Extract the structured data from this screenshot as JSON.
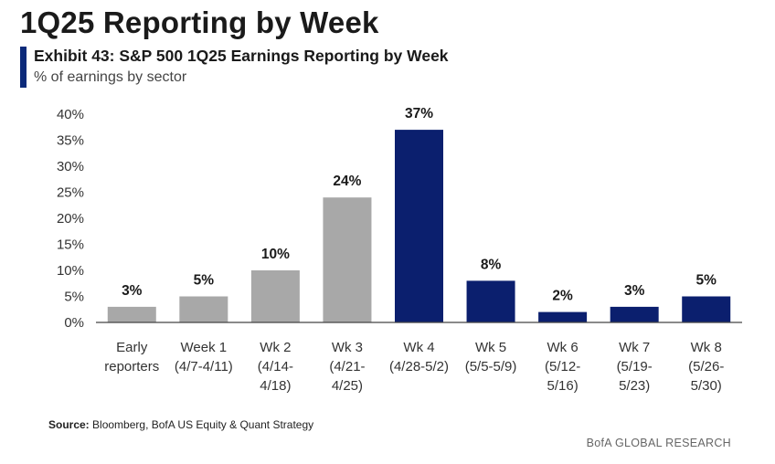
{
  "headline": "1Q25 Reporting by Week",
  "exhibit": {
    "title": "Exhibit 43: S&P 500 1Q25 Earnings Reporting by Week",
    "subtitle": "% of earnings by sector"
  },
  "footer": {
    "source_label": "Source:",
    "source_text": "Bloomberg, BofA US Equity & Quant Strategy",
    "brand": "BofA GLOBAL RESEARCH"
  },
  "colors": {
    "accent_bar": "#0b2a7a",
    "gray_bar": "#a8a8a8",
    "navy_bar": "#0b1f6e"
  },
  "chart_data": {
    "type": "bar",
    "title": "Exhibit 43: S&P 500 1Q25 Earnings Reporting by Week",
    "subtitle": "% of earnings by sector",
    "categories": [
      [
        "Early",
        "reporters"
      ],
      [
        "Week 1",
        "(4/7-4/11)"
      ],
      [
        "Wk 2",
        "(4/14-",
        "4/18)"
      ],
      [
        "Wk 3",
        "(4/21-",
        "4/25)"
      ],
      [
        "Wk 4",
        "(4/28-5/2)"
      ],
      [
        "Wk 5",
        "(5/5-5/9)"
      ],
      [
        "Wk 6",
        "(5/12-",
        "5/16)"
      ],
      [
        "Wk 7",
        "(5/19-",
        "5/23)"
      ],
      [
        "Wk 8",
        "(5/26-",
        "5/30)"
      ]
    ],
    "values": [
      3,
      5,
      10,
      24,
      37,
      8,
      2,
      3,
      5
    ],
    "data_labels": [
      "3%",
      "5%",
      "10%",
      "24%",
      "37%",
      "8%",
      "2%",
      "3%",
      "5%"
    ],
    "bar_colors": [
      "gray",
      "gray",
      "gray",
      "gray",
      "navy",
      "navy",
      "navy",
      "navy",
      "navy"
    ],
    "ylim": [
      0,
      40
    ],
    "yticks": [
      0,
      5,
      10,
      15,
      20,
      25,
      30,
      35,
      40
    ],
    "ytick_labels": [
      "0%",
      "5%",
      "10%",
      "15%",
      "20%",
      "25%",
      "30%",
      "35%",
      "40%"
    ],
    "xlabel": "",
    "ylabel": "",
    "grid": false,
    "legend": "none"
  }
}
